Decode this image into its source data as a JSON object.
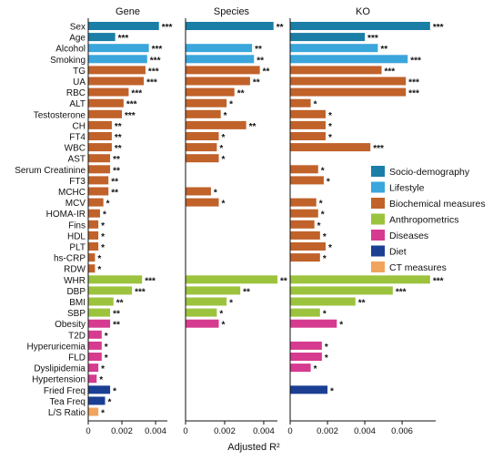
{
  "chart_data": {
    "type": "bar",
    "orientation": "horizontal",
    "xlabel": "Adjusted R²",
    "categories": [
      "Sex",
      "Age",
      "Alcohol",
      "Smoking",
      "TG",
      "UA",
      "RBC",
      "ALT",
      "Testosterone",
      "CH",
      "FT4",
      "WBC",
      "AST",
      "Serum Creatinine",
      "FT3",
      "MCHC",
      "MCV",
      "HOMA-IR",
      "Fins",
      "HDL",
      "PLT",
      "hs-CRP",
      "RDW",
      "WHR",
      "DBP",
      "BMI",
      "SBP",
      "Obesity",
      "T2D",
      "Hyperuricemia",
      "FLD",
      "Dyslipidemia",
      "Hypertension",
      "Fried Freq",
      "Tea Freq",
      "L/S Ratio"
    ],
    "groups": [
      "Socio-demography",
      "Socio-demography",
      "Lifestyle",
      "Lifestyle",
      "Biochemical measures",
      "Biochemical measures",
      "Biochemical measures",
      "Biochemical measures",
      "Biochemical measures",
      "Biochemical measures",
      "Biochemical measures",
      "Biochemical measures",
      "Biochemical measures",
      "Biochemical measures",
      "Biochemical measures",
      "Biochemical measures",
      "Biochemical measures",
      "Biochemical measures",
      "Biochemical measures",
      "Biochemical measures",
      "Biochemical measures",
      "Biochemical measures",
      "Biochemical measures",
      "Anthropometrics",
      "Anthropometrics",
      "Anthropometrics",
      "Anthropometrics",
      "Diseases",
      "Diseases",
      "Diseases",
      "Diseases",
      "Diseases",
      "Diseases",
      "Diet",
      "Diet",
      "CT measures"
    ],
    "legend": {
      "position": "right",
      "entries": [
        {
          "name": "Socio-demography",
          "color": "#1b7ea6"
        },
        {
          "name": "Lifestyle",
          "color": "#3aa6dc"
        },
        {
          "name": "Biochemical measures",
          "color": "#c0622a"
        },
        {
          "name": "Anthropometrics",
          "color": "#9cc33e"
        },
        {
          "name": "Diseases",
          "color": "#d63b8f"
        },
        {
          "name": "Diet",
          "color": "#1b3f93"
        },
        {
          "name": "CT measures",
          "color": "#f0a45c"
        }
      ]
    },
    "panels": [
      {
        "title": "Gene",
        "xlim": [
          0,
          0.0047
        ],
        "ticks": [
          0,
          0.002,
          0.004
        ],
        "tick_labels": [
          "0",
          "0.002",
          "0.004"
        ],
        "values": [
          0.0042,
          0.0016,
          0.0036,
          0.0035,
          0.0034,
          0.0033,
          0.0024,
          0.0021,
          0.002,
          0.0014,
          0.0014,
          0.0014,
          0.0013,
          0.0013,
          0.0012,
          0.0012,
          0.0009,
          0.0007,
          0.0006,
          0.0006,
          0.0006,
          0.0004,
          0.0004,
          0.0032,
          0.0026,
          0.0015,
          0.0013,
          0.0013,
          0.0008,
          0.0008,
          0.0008,
          0.0006,
          0.0005,
          0.0013,
          0.001,
          0.0006
        ],
        "significance": [
          "***",
          "***",
          "***",
          "***",
          "***",
          "***",
          "***",
          "***",
          "***",
          "**",
          "**",
          "**",
          "**",
          "**",
          "**",
          "**",
          "*",
          "*",
          "*",
          "*",
          "*",
          "*",
          "*",
          "***",
          "***",
          "**",
          "**",
          "**",
          "*",
          "*",
          "*",
          "*",
          "*",
          "*",
          "*",
          "*"
        ]
      },
      {
        "title": "Species",
        "xlim": [
          0,
          0.0047
        ],
        "ticks": [
          0,
          0.002,
          0.004
        ],
        "tick_labels": [
          "0",
          "0.002",
          "0.004"
        ],
        "values": [
          0.0045,
          null,
          0.0034,
          0.0035,
          0.0038,
          0.0033,
          0.0025,
          0.0021,
          0.0018,
          0.0031,
          0.0017,
          0.0016,
          0.0017,
          null,
          null,
          0.0013,
          0.0017,
          null,
          null,
          null,
          null,
          null,
          null,
          0.0047,
          0.0028,
          0.0021,
          0.0016,
          0.0017,
          null,
          null,
          null,
          null,
          null,
          null,
          null,
          null
        ],
        "significance": [
          "**",
          "",
          "**",
          "**",
          "**",
          "**",
          "**",
          "*",
          "*",
          "**",
          "*",
          "*",
          "*",
          "",
          "",
          "*",
          "*",
          "",
          "",
          "",
          "",
          "",
          "",
          "**",
          "**",
          "*",
          "*",
          "*",
          "",
          "",
          "",
          "",
          "",
          "",
          "",
          ""
        ]
      },
      {
        "title": "KO",
        "xlim": [
          0,
          0.0078
        ],
        "ticks": [
          0,
          0.002,
          0.004,
          0.006
        ],
        "tick_labels": [
          "0",
          "0.002",
          "0.004",
          "0.006"
        ],
        "values": [
          0.0075,
          0.004,
          0.0047,
          0.0063,
          0.0049,
          0.0062,
          0.0062,
          0.0011,
          0.0019,
          0.0019,
          0.0019,
          0.0043,
          null,
          0.0015,
          0.0018,
          null,
          0.0014,
          0.0015,
          0.0013,
          0.0016,
          0.0019,
          0.0016,
          null,
          0.0075,
          0.0055,
          0.0035,
          0.0016,
          0.0025,
          null,
          0.0017,
          0.0017,
          0.0011,
          null,
          0.002,
          null,
          null
        ],
        "significance": [
          "***",
          "***",
          "**",
          "***",
          "***",
          "***",
          "***",
          "*",
          "*",
          "*",
          "*",
          "***",
          "",
          "*",
          "*",
          "",
          "*",
          "*",
          "*",
          "*",
          "*",
          "*",
          "",
          "***",
          "***",
          "**",
          "*",
          "*",
          "",
          "*",
          "*",
          "*",
          "",
          "*",
          "",
          ""
        ]
      }
    ]
  }
}
